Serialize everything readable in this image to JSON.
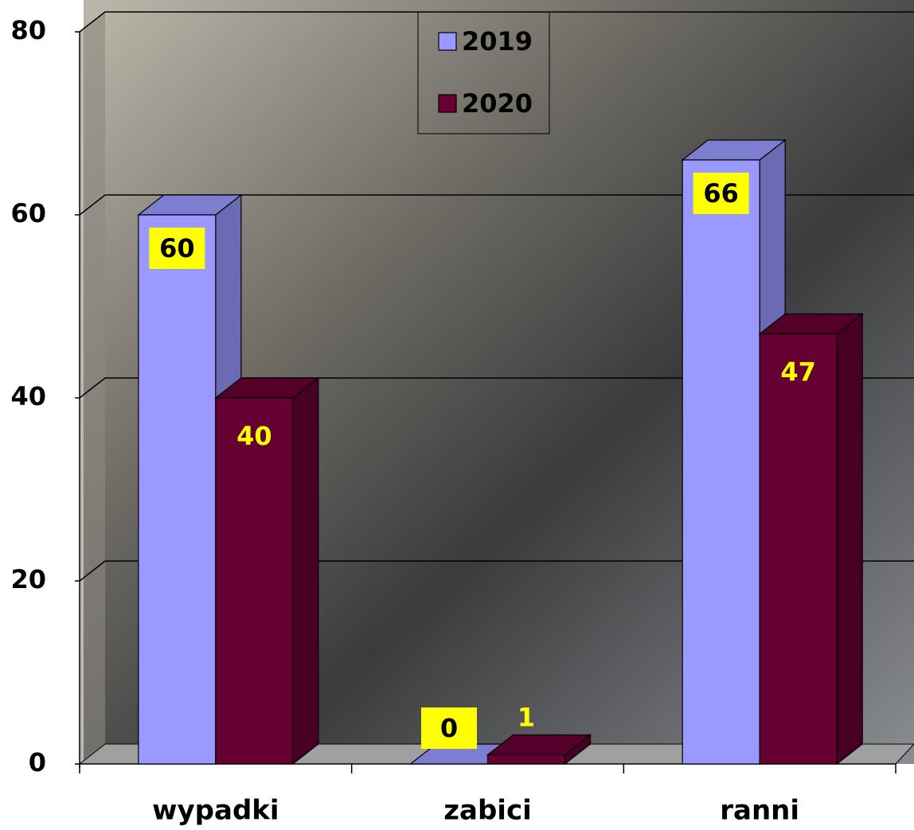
{
  "chart_data": {
    "type": "bar3d",
    "categories": [
      "wypadki",
      "zabici",
      "ranni"
    ],
    "series": [
      {
        "name": "2019",
        "color": "#9999ff",
        "values": [
          60,
          0,
          66
        ]
      },
      {
        "name": "2020",
        "color": "#660033",
        "values": [
          40,
          1,
          47
        ]
      }
    ],
    "ylim": [
      0,
      80
    ],
    "yticks": [
      0,
      20,
      40,
      60,
      80
    ],
    "grid": true,
    "legend": "top"
  }
}
